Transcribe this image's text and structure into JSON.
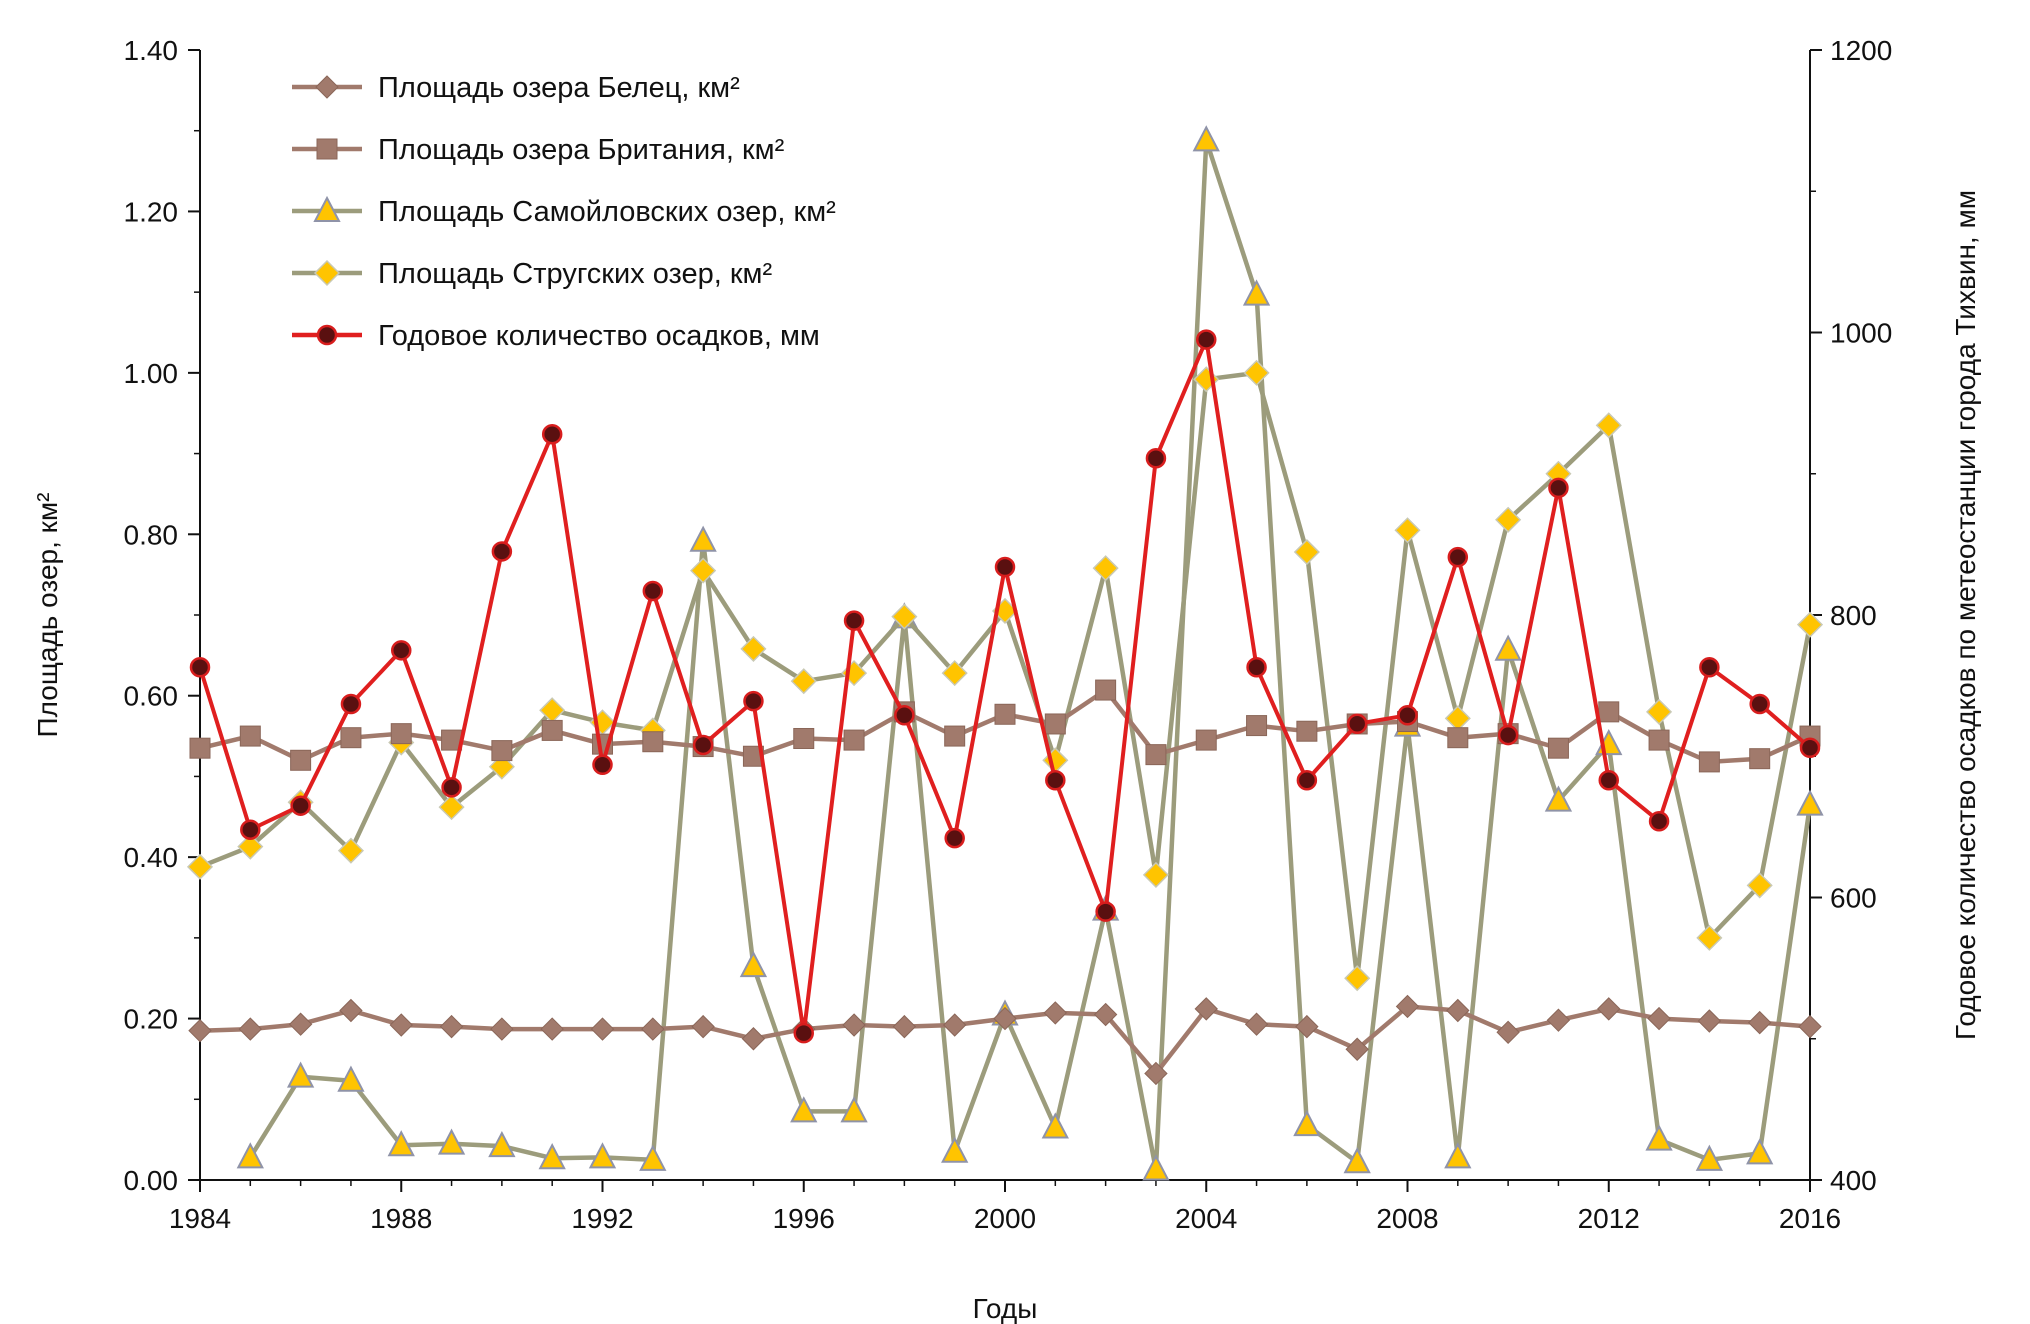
{
  "chart_data": {
    "type": "line",
    "title": "",
    "xlabel": "Годы",
    "ylabel": "Площадь озер, км²",
    "y2label": "Годовое количество осадков по метеостанции города Тихвин, мм",
    "xlim": [
      1984,
      2016
    ],
    "ylim": [
      0,
      1.4
    ],
    "y2lim": [
      400,
      1200
    ],
    "x_ticks": [
      "1984",
      "1988",
      "1992",
      "1996",
      "2000",
      "2004",
      "2008",
      "2012",
      "2016"
    ],
    "y_ticks": [
      "0.00",
      "0.20",
      "0.40",
      "0.60",
      "0.80",
      "1.00",
      "1.20",
      "1.40"
    ],
    "y2_ticks": [
      "400",
      "600",
      "800",
      "1000",
      "1200"
    ],
    "grid": false,
    "legend_position": "top-left",
    "series": [
      {
        "name": "Площадь озера Белец, км²",
        "axis": "left",
        "marker": "diamond",
        "color": "#a17a6c",
        "x": [
          1984,
          1985,
          1986,
          1987,
          1988,
          1989,
          1990,
          1991,
          1992,
          1993,
          1994,
          1995,
          1996,
          1997,
          1998,
          1999,
          2000,
          2001,
          2002,
          2003,
          2004,
          2005,
          2006,
          2007,
          2008,
          2009,
          2010,
          2011,
          2012,
          2013,
          2014,
          2015,
          2016
        ],
        "values": [
          0.185,
          0.187,
          0.193,
          0.21,
          0.192,
          0.19,
          0.187,
          0.187,
          0.187,
          0.187,
          0.19,
          0.175,
          0.187,
          0.192,
          0.19,
          0.192,
          0.2,
          0.207,
          0.205,
          0.132,
          0.212,
          0.193,
          0.19,
          0.162,
          0.215,
          0.21,
          0.183,
          0.198,
          0.212,
          0.2,
          0.197,
          0.195,
          0.19
        ]
      },
      {
        "name": "Площадь озера Британия, км²",
        "axis": "left",
        "marker": "square",
        "color": "#a17a6c",
        "x": [
          1984,
          1985,
          1986,
          1987,
          1988,
          1989,
          1990,
          1991,
          1992,
          1993,
          1994,
          1995,
          1996,
          1997,
          1998,
          1999,
          2000,
          2001,
          2002,
          2003,
          2004,
          2005,
          2006,
          2007,
          2008,
          2009,
          2010,
          2011,
          2012,
          2013,
          2014,
          2015,
          2016
        ],
        "values": [
          0.535,
          0.55,
          0.52,
          0.548,
          0.553,
          0.545,
          0.532,
          0.557,
          0.54,
          0.543,
          0.537,
          0.525,
          0.547,
          0.545,
          0.58,
          0.55,
          0.577,
          0.565,
          0.607,
          0.527,
          0.545,
          0.563,
          0.556,
          0.565,
          0.568,
          0.548,
          0.553,
          0.535,
          0.58,
          0.545,
          0.518,
          0.522,
          0.55
        ]
      },
      {
        "name": "Площадь Самойловских озер, км²",
        "axis": "left",
        "marker": "triangle",
        "color": "#9c9c7c",
        "x": [
          1985,
          1986,
          1987,
          1988,
          1989,
          1990,
          1991,
          1992,
          1993,
          1994,
          1995,
          1996,
          1997,
          1998,
          1999,
          2000,
          2001,
          2002,
          2003,
          2004,
          2005,
          2006,
          2007,
          2008,
          2009,
          2010,
          2011,
          2012,
          2013,
          2014,
          2015,
          2016
        ],
        "values": [
          0.028,
          0.128,
          0.123,
          0.043,
          0.045,
          0.042,
          0.027,
          0.028,
          0.025,
          0.792,
          0.265,
          0.085,
          0.085,
          0.697,
          0.035,
          0.205,
          0.065,
          0.335,
          0.013,
          1.288,
          1.097,
          0.068,
          0.022,
          0.563,
          0.028,
          0.657,
          0.47,
          0.54,
          0.05,
          0.025,
          0.033,
          0.465
        ]
      },
      {
        "name": "Площадь Стругских озер, км²",
        "axis": "left",
        "marker": "diamond",
        "color": "#9c9c7c",
        "x": [
          1984,
          1985,
          1986,
          1987,
          1988,
          1989,
          1990,
          1991,
          1992,
          1993,
          1994,
          1995,
          1996,
          1997,
          1998,
          1999,
          2000,
          2001,
          2002,
          2003,
          2004,
          2005,
          2006,
          2007,
          2008,
          2009,
          2010,
          2011,
          2012,
          2013,
          2014,
          2015,
          2016
        ],
        "values": [
          0.388,
          0.413,
          0.468,
          0.408,
          0.542,
          0.462,
          0.512,
          0.582,
          0.567,
          0.557,
          0.755,
          0.658,
          0.618,
          0.628,
          0.698,
          0.628,
          0.705,
          0.52,
          0.758,
          0.378,
          0.992,
          1.0,
          0.778,
          0.25,
          0.805,
          0.572,
          0.818,
          0.875,
          0.935,
          0.58,
          0.3,
          0.365,
          0.688
        ]
      },
      {
        "name": "Годовое количество осадков, мм",
        "axis": "right",
        "marker": "circle",
        "color": "#e01f1f",
        "x": [
          1984,
          1985,
          1986,
          1987,
          1988,
          1989,
          1990,
          1991,
          1992,
          1993,
          1994,
          1995,
          1996,
          1997,
          1998,
          1999,
          2000,
          2001,
          2002,
          2003,
          2004,
          2005,
          2006,
          2007,
          2008,
          2009,
          2010,
          2011,
          2012,
          2013,
          2014,
          2015,
          2016
        ],
        "values": [
          763,
          648,
          665,
          737,
          775,
          678,
          845,
          928,
          694,
          817,
          708,
          739,
          504,
          796,
          729,
          642,
          834,
          683,
          590,
          911,
          995,
          763,
          683,
          723,
          729,
          841,
          715,
          890,
          683,
          654,
          763,
          737,
          706
        ]
      }
    ]
  }
}
